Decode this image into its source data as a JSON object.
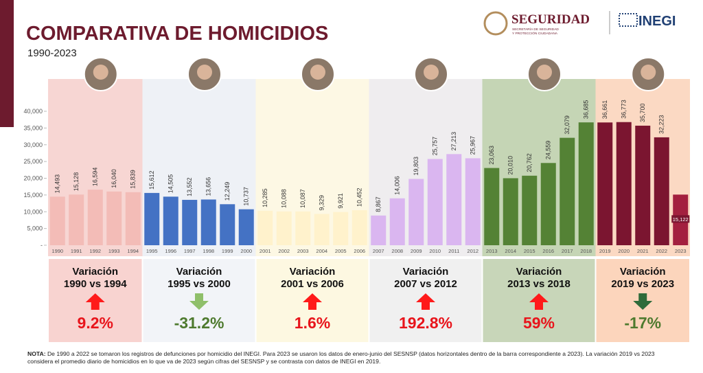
{
  "header": {
    "title": "COMPARATIVA DE HOMICIDIOS",
    "subtitle": "1990-2023",
    "logo_main": "SEGURIDAD",
    "logo_sub_1": "SECRETARÍA DE SEGURIDAD",
    "logo_sub_2": "Y PROTECCIÓN CIUDADANA",
    "logo_partner": "INEGI"
  },
  "chart_data": {
    "type": "bar",
    "ylim": [
      0,
      40000
    ],
    "yticks": [
      {
        "value": 0,
        "label": "-"
      },
      {
        "value": 5000,
        "label": "5,000"
      },
      {
        "value": 10000,
        "label": "10,000"
      },
      {
        "value": 15000,
        "label": "15,000"
      },
      {
        "value": 20000,
        "label": "20,000"
      },
      {
        "value": 25000,
        "label": "25,000"
      },
      {
        "value": 30000,
        "label": "30,000"
      },
      {
        "value": 35000,
        "label": "35,000"
      },
      {
        "value": 40000,
        "label": "40,000"
      }
    ],
    "up_color": "#e8141b",
    "down_color": "#4e7a2e",
    "up_arrow_color": "#ff1a1a",
    "down_arrow_color": "#8fbf6a",
    "periods": [
      {
        "categories": [
          "1990",
          "1991",
          "1992",
          "1993",
          "1994"
        ],
        "values": [
          14493,
          15128,
          16594,
          16040,
          15839
        ],
        "value_labels": [
          "14,493",
          "15,128",
          "16,594",
          "16,040",
          "15,839"
        ],
        "color": "#f3bcb7",
        "background": "#f7d6d3",
        "box": "#f8d3d0",
        "heading": "Variación",
        "range": "1990 vs 1994",
        "variation": 9.2,
        "variation_label": "9.2%"
      },
      {
        "categories": [
          "1995",
          "1996",
          "1997",
          "1998",
          "1999",
          "2000"
        ],
        "values": [
          15612,
          14505,
          13552,
          13656,
          12249,
          10737
        ],
        "value_labels": [
          "15,612",
          "14,505",
          "13,552",
          "13,656",
          "12,249",
          "10,737"
        ],
        "color": "#4472c4",
        "background": "#eef1f6",
        "box": "#f2f4f8",
        "heading": "Variación",
        "range": "1995 vs 2000",
        "variation": -31.2,
        "variation_label": "-31.2%",
        "arrow_color": "#8fbf6a"
      },
      {
        "categories": [
          "2001",
          "2002",
          "2003",
          "2004",
          "2005",
          "2006"
        ],
        "values": [
          10285,
          10088,
          10087,
          9329,
          9921,
          10452
        ],
        "value_labels": [
          "10,285",
          "10,088",
          "10,087",
          "9,329",
          "9,921",
          "10,452"
        ],
        "color": "#fff2cc",
        "background": "#fdf8e4",
        "box": "#fdf8e1",
        "heading": "Variación",
        "range": "2001 vs 2006",
        "variation": 1.6,
        "variation_label": "1.6%"
      },
      {
        "categories": [
          "2007",
          "2008",
          "2009",
          "2010",
          "2011",
          "2012"
        ],
        "values": [
          8867,
          14006,
          19803,
          25757,
          27213,
          25967
        ],
        "value_labels": [
          "8,867",
          "14,006",
          "19,803",
          "25,757",
          "27,213",
          "25,967"
        ],
        "color": "#dab6f0",
        "background": "#efedef",
        "box": "#f0f0f0",
        "heading": "Variación",
        "range": "2007 vs 2012",
        "variation": 192.8,
        "variation_label": "192.8%"
      },
      {
        "categories": [
          "2013",
          "2014",
          "2015",
          "2016",
          "2017",
          "2018"
        ],
        "values": [
          23063,
          20010,
          20762,
          24559,
          32079,
          36685
        ],
        "value_labels": [
          "23,063",
          "20,010",
          "20,762",
          "24,559",
          "32,079",
          "36,685"
        ],
        "color": "#548235",
        "background": "#c5d5b5",
        "box": "#c8d6b9",
        "heading": "Variación",
        "range": "2013 vs 2018",
        "variation": 59,
        "variation_label": "59%"
      },
      {
        "categories": [
          "2019",
          "2020",
          "2021",
          "2022",
          "2023"
        ],
        "values": [
          36661,
          36773,
          35700,
          32223,
          15122
        ],
        "value_labels": [
          "36,661",
          "36,773",
          "35,700",
          "32,223",
          "15,122"
        ],
        "color": "#7b1530",
        "last_color": "#a3203f",
        "background": "#fbd9c3",
        "box": "#fcd5bc",
        "heading": "Variación",
        "range": "2019 vs 2023",
        "variation": -17,
        "variation_label": "-17%",
        "arrow_color": "#2e6b3a",
        "last_label_boxed": true
      }
    ]
  },
  "note": {
    "label": "NOTA:",
    "text": "De 1990 a 2022 se tomaron los registros de defunciones por homicidio del INEGI. Para 2023 se usaron los datos de enero-junio del SESNSP (datos horizontales dentro de la barra correspondiente a 2023). La variación 2019 vs 2023 considera el promedio diario de homicidios en lo que va de 2023 según cifras del SESNSP y se contrasta con datos de INEGI en 2019."
  }
}
